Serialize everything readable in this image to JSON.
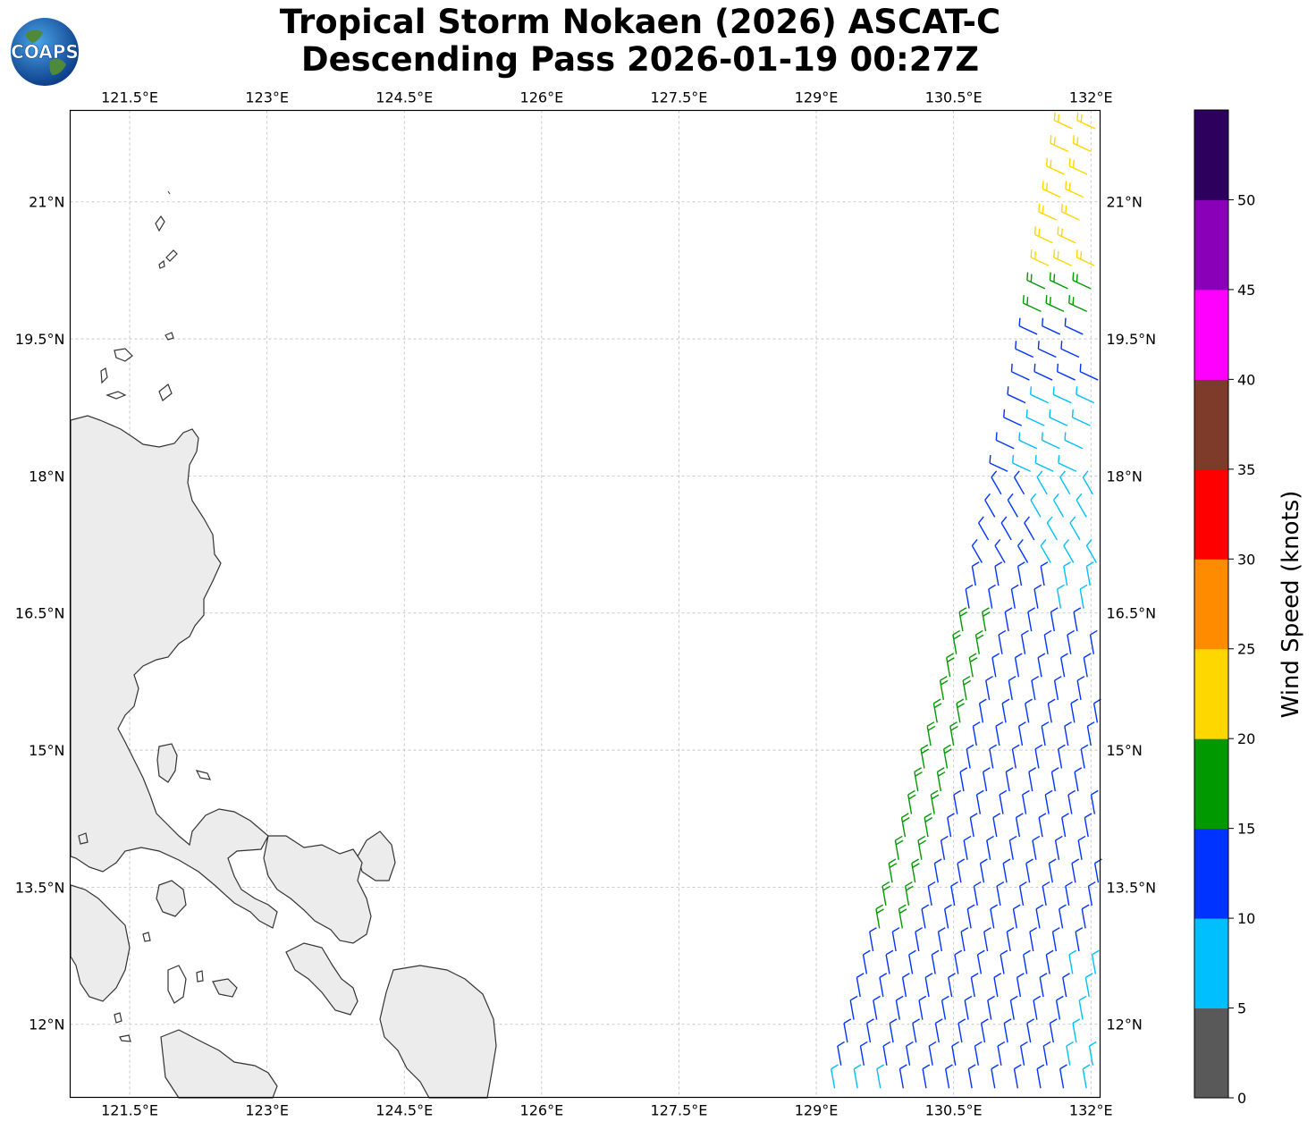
{
  "title": {
    "line1": "Tropical Storm Nokaen (2026) ASCAT-C",
    "line2": "Descending Pass 2026-01-19 00:27Z"
  },
  "logo": {
    "text": "COAPS",
    "icon": "globe-logo"
  },
  "map": {
    "lon_range": [
      120.85,
      132.1
    ],
    "lat_range": [
      11.2,
      22.0
    ],
    "lon_ticks": [
      "121.5°E",
      "123°E",
      "124.5°E",
      "126°E",
      "127.5°E",
      "129°E",
      "130.5°E",
      "132°E"
    ],
    "lat_ticks": [
      "21°N",
      "19.5°N",
      "18°N",
      "16.5°N",
      "15°N",
      "13.5°N",
      "12°N"
    ],
    "land_color": "#ffffff",
    "coast_color": "#333333",
    "grid_color": "#bbbbbb"
  },
  "colorbar": {
    "label": "Wind Speed (knots)",
    "ticks": [
      "0",
      "5",
      "10",
      "15",
      "20",
      "25",
      "30",
      "35",
      "40",
      "45",
      "50"
    ],
    "colors": [
      "#595959",
      "#00bfff",
      "#0033ff",
      "#009900",
      "#ffd700",
      "#ff8c00",
      "#ff0000",
      "#7f3b2a",
      "#ff00ff",
      "#8a00b8",
      "#2e005e"
    ]
  },
  "wind_colors": {
    "cyan": "#00bfff",
    "blue": "#0033ff",
    "green": "#009900",
    "yellow": "#ffd700"
  }
}
